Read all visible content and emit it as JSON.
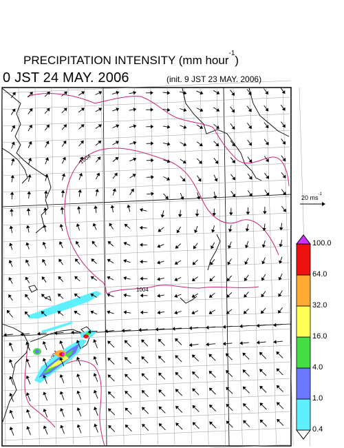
{
  "title": {
    "main": "PRECIPITATION INTENSITY (mm hour",
    "exponent": "-1",
    "close": ")"
  },
  "subtitle": "0 JST 24 MAY. 2006",
  "init_label": "(init. 9 JST 23 MAY. 2006)",
  "wind_scale": {
    "value": "20 ms",
    "exponent": "-1"
  },
  "colorbar": {
    "levels": [
      "0.4",
      "1.0",
      "4.0",
      "16.0",
      "32.0",
      "64.0",
      "100.0"
    ],
    "colors": [
      "#5ef0ff",
      "#6a78ff",
      "#44dd44",
      "#ffff55",
      "#ffaa33",
      "#ee1111",
      "#cc33ff"
    ]
  },
  "contour_labels": [
    "1004",
    "1004",
    "1004"
  ],
  "colors": {
    "isobar": "#cc2277",
    "coast": "#000000",
    "grid": "#999999"
  }
}
